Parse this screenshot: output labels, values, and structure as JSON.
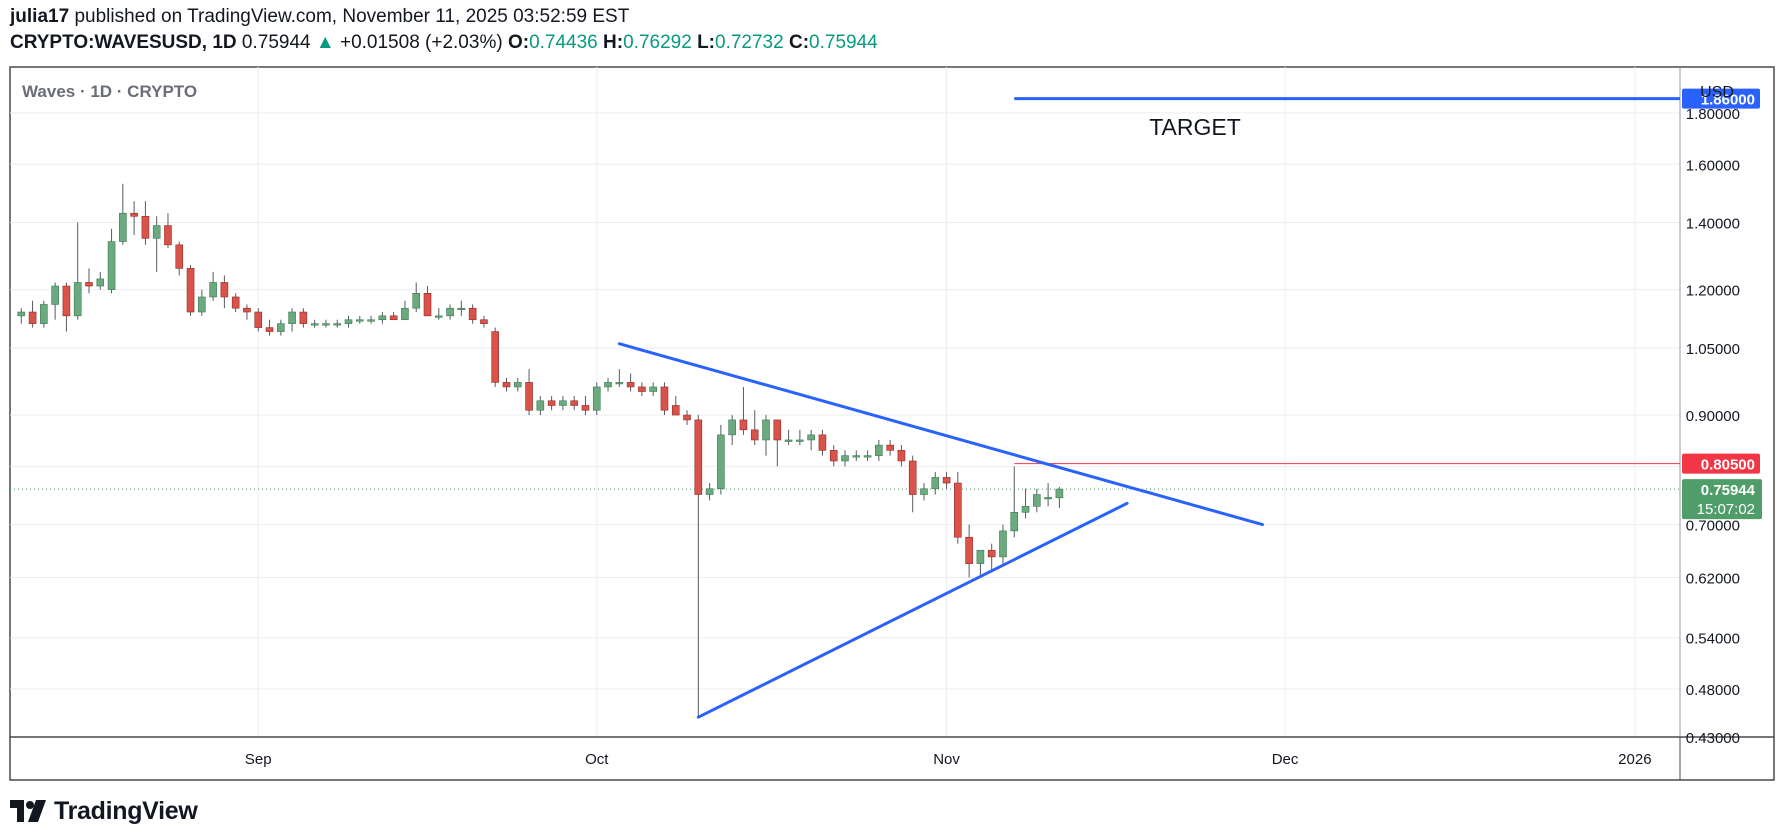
{
  "header": {
    "publisher": "julia17",
    "published_text": "published on TradingView.com, November 11, 2025 03:52:59 EST",
    "symbol": "CRYPTO:WAVESUSD, 1D",
    "last_price": "0.75944",
    "change_arrow": "▲",
    "change": "+0.01508 (+2.03%)",
    "open_label": "O:",
    "open": "0.74436",
    "high_label": "H:",
    "high": "0.76292",
    "low_label": "L:",
    "low": "0.72732",
    "close_label": "C:",
    "close": "0.75944"
  },
  "pane": {
    "legend": "Waves · 1D · CRYPTO",
    "currency": "USD",
    "target_label": "TARGET"
  },
  "footer": {
    "brand": "TradingView",
    "logo_icon": "tradingview-logo-icon"
  },
  "colors": {
    "up": "#6BAA7F",
    "down": "#D9534A",
    "blue": "#2962FF",
    "red_line": "#F23645",
    "green_badge": "#4F9E6A"
  },
  "chart_data": {
    "type": "candlestick",
    "y_scale": "log",
    "ylim": [
      0.43,
      2.0
    ],
    "y_ticks": [
      "1.80000",
      "1.60000",
      "1.40000",
      "1.20000",
      "1.05000",
      "0.90000",
      "0.80000",
      "0.70000",
      "0.62000",
      "0.54000",
      "0.48000",
      "0.43000"
    ],
    "x_ticks": [
      {
        "label": "Sep",
        "date": "2025-09-01"
      },
      {
        "label": "Oct",
        "date": "2025-10-01"
      },
      {
        "label": "Nov",
        "date": "2025-11-01"
      },
      {
        "label": "Dec",
        "date": "2025-12-01"
      },
      {
        "label": "2026",
        "date": "2026-01-01"
      }
    ],
    "xlim": [
      "2025-08-10",
      "2026-01-05"
    ],
    "candles": [
      {
        "date": "2025-08-11",
        "o": 1.13,
        "h": 1.15,
        "l": 1.11,
        "c": 1.14
      },
      {
        "date": "2025-08-12",
        "o": 1.14,
        "h": 1.17,
        "l": 1.1,
        "c": 1.11
      },
      {
        "date": "2025-08-13",
        "o": 1.11,
        "h": 1.17,
        "l": 1.1,
        "c": 1.16
      },
      {
        "date": "2025-08-14",
        "o": 1.16,
        "h": 1.22,
        "l": 1.12,
        "c": 1.21
      },
      {
        "date": "2025-08-15",
        "o": 1.21,
        "h": 1.22,
        "l": 1.09,
        "c": 1.13
      },
      {
        "date": "2025-08-16",
        "o": 1.13,
        "h": 1.4,
        "l": 1.12,
        "c": 1.22
      },
      {
        "date": "2025-08-17",
        "o": 1.22,
        "h": 1.26,
        "l": 1.19,
        "c": 1.21
      },
      {
        "date": "2025-08-18",
        "o": 1.21,
        "h": 1.25,
        "l": 1.2,
        "c": 1.23
      },
      {
        "date": "2025-08-19",
        "o": 1.2,
        "h": 1.38,
        "l": 1.19,
        "c": 1.34
      },
      {
        "date": "2025-08-20",
        "o": 1.34,
        "h": 1.53,
        "l": 1.33,
        "c": 1.43
      },
      {
        "date": "2025-08-21",
        "o": 1.43,
        "h": 1.47,
        "l": 1.36,
        "c": 1.42
      },
      {
        "date": "2025-08-22",
        "o": 1.42,
        "h": 1.47,
        "l": 1.33,
        "c": 1.35
      },
      {
        "date": "2025-08-23",
        "o": 1.35,
        "h": 1.42,
        "l": 1.25,
        "c": 1.39
      },
      {
        "date": "2025-08-24",
        "o": 1.39,
        "h": 1.43,
        "l": 1.32,
        "c": 1.33
      },
      {
        "date": "2025-08-25",
        "o": 1.33,
        "h": 1.34,
        "l": 1.24,
        "c": 1.26
      },
      {
        "date": "2025-08-26",
        "o": 1.26,
        "h": 1.27,
        "l": 1.13,
        "c": 1.14
      },
      {
        "date": "2025-08-27",
        "o": 1.14,
        "h": 1.2,
        "l": 1.13,
        "c": 1.18
      },
      {
        "date": "2025-08-28",
        "o": 1.18,
        "h": 1.25,
        "l": 1.17,
        "c": 1.22
      },
      {
        "date": "2025-08-29",
        "o": 1.22,
        "h": 1.24,
        "l": 1.15,
        "c": 1.18
      },
      {
        "date": "2025-08-30",
        "o": 1.18,
        "h": 1.19,
        "l": 1.14,
        "c": 1.15
      },
      {
        "date": "2025-08-31",
        "o": 1.15,
        "h": 1.16,
        "l": 1.12,
        "c": 1.14
      },
      {
        "date": "2025-09-01",
        "o": 1.14,
        "h": 1.15,
        "l": 1.09,
        "c": 1.1
      },
      {
        "date": "2025-09-02",
        "o": 1.1,
        "h": 1.12,
        "l": 1.08,
        "c": 1.09
      },
      {
        "date": "2025-09-03",
        "o": 1.09,
        "h": 1.12,
        "l": 1.08,
        "c": 1.11
      },
      {
        "date": "2025-09-04",
        "o": 1.11,
        "h": 1.15,
        "l": 1.09,
        "c": 1.14
      },
      {
        "date": "2025-09-05",
        "o": 1.14,
        "h": 1.15,
        "l": 1.1,
        "c": 1.11
      },
      {
        "date": "2025-09-06",
        "o": 1.11,
        "h": 1.12,
        "l": 1.1,
        "c": 1.11
      },
      {
        "date": "2025-09-07",
        "o": 1.11,
        "h": 1.12,
        "l": 1.1,
        "c": 1.11
      },
      {
        "date": "2025-09-08",
        "o": 1.11,
        "h": 1.12,
        "l": 1.1,
        "c": 1.11
      },
      {
        "date": "2025-09-09",
        "o": 1.11,
        "h": 1.13,
        "l": 1.1,
        "c": 1.12
      },
      {
        "date": "2025-09-10",
        "o": 1.12,
        "h": 1.13,
        "l": 1.11,
        "c": 1.12
      },
      {
        "date": "2025-09-11",
        "o": 1.12,
        "h": 1.13,
        "l": 1.11,
        "c": 1.12
      },
      {
        "date": "2025-09-12",
        "o": 1.12,
        "h": 1.14,
        "l": 1.11,
        "c": 1.13
      },
      {
        "date": "2025-09-13",
        "o": 1.13,
        "h": 1.14,
        "l": 1.12,
        "c": 1.12
      },
      {
        "date": "2025-09-14",
        "o": 1.12,
        "h": 1.17,
        "l": 1.12,
        "c": 1.15
      },
      {
        "date": "2025-09-15",
        "o": 1.15,
        "h": 1.22,
        "l": 1.14,
        "c": 1.19
      },
      {
        "date": "2025-09-16",
        "o": 1.19,
        "h": 1.21,
        "l": 1.13,
        "c": 1.13
      },
      {
        "date": "2025-09-17",
        "o": 1.13,
        "h": 1.15,
        "l": 1.12,
        "c": 1.13
      },
      {
        "date": "2025-09-18",
        "o": 1.13,
        "h": 1.16,
        "l": 1.12,
        "c": 1.15
      },
      {
        "date": "2025-09-19",
        "o": 1.15,
        "h": 1.17,
        "l": 1.13,
        "c": 1.15
      },
      {
        "date": "2025-09-20",
        "o": 1.15,
        "h": 1.16,
        "l": 1.11,
        "c": 1.12
      },
      {
        "date": "2025-09-21",
        "o": 1.12,
        "h": 1.13,
        "l": 1.1,
        "c": 1.11
      },
      {
        "date": "2025-09-22",
        "o": 1.09,
        "h": 1.1,
        "l": 0.96,
        "c": 0.97
      },
      {
        "date": "2025-09-23",
        "o": 0.97,
        "h": 0.98,
        "l": 0.95,
        "c": 0.96
      },
      {
        "date": "2025-09-24",
        "o": 0.96,
        "h": 0.98,
        "l": 0.95,
        "c": 0.97
      },
      {
        "date": "2025-09-25",
        "o": 0.97,
        "h": 1.0,
        "l": 0.9,
        "c": 0.91
      },
      {
        "date": "2025-09-26",
        "o": 0.91,
        "h": 0.94,
        "l": 0.9,
        "c": 0.93
      },
      {
        "date": "2025-09-27",
        "o": 0.93,
        "h": 0.94,
        "l": 0.91,
        "c": 0.92
      },
      {
        "date": "2025-09-28",
        "o": 0.92,
        "h": 0.94,
        "l": 0.91,
        "c": 0.93
      },
      {
        "date": "2025-09-29",
        "o": 0.93,
        "h": 0.94,
        "l": 0.91,
        "c": 0.92
      },
      {
        "date": "2025-09-30",
        "o": 0.92,
        "h": 0.94,
        "l": 0.9,
        "c": 0.91
      },
      {
        "date": "2025-10-01",
        "o": 0.91,
        "h": 0.97,
        "l": 0.9,
        "c": 0.96
      },
      {
        "date": "2025-10-02",
        "o": 0.96,
        "h": 0.98,
        "l": 0.95,
        "c": 0.97
      },
      {
        "date": "2025-10-03",
        "o": 0.97,
        "h": 1.0,
        "l": 0.96,
        "c": 0.97
      },
      {
        "date": "2025-10-04",
        "o": 0.97,
        "h": 0.99,
        "l": 0.95,
        "c": 0.96
      },
      {
        "date": "2025-10-05",
        "o": 0.96,
        "h": 0.97,
        "l": 0.94,
        "c": 0.95
      },
      {
        "date": "2025-10-06",
        "o": 0.95,
        "h": 0.97,
        "l": 0.94,
        "c": 0.96
      },
      {
        "date": "2025-10-07",
        "o": 0.96,
        "h": 0.97,
        "l": 0.9,
        "c": 0.91
      },
      {
        "date": "2025-10-08",
        "o": 0.92,
        "h": 0.94,
        "l": 0.9,
        "c": 0.9
      },
      {
        "date": "2025-10-09",
        "o": 0.9,
        "h": 0.91,
        "l": 0.88,
        "c": 0.89
      },
      {
        "date": "2025-10-10",
        "o": 0.89,
        "h": 0.9,
        "l": 0.45,
        "c": 0.75
      },
      {
        "date": "2025-10-11",
        "o": 0.75,
        "h": 0.77,
        "l": 0.74,
        "c": 0.76
      },
      {
        "date": "2025-10-12",
        "o": 0.76,
        "h": 0.88,
        "l": 0.75,
        "c": 0.86
      },
      {
        "date": "2025-10-13",
        "o": 0.86,
        "h": 0.9,
        "l": 0.84,
        "c": 0.89
      },
      {
        "date": "2025-10-14",
        "o": 0.89,
        "h": 0.96,
        "l": 0.86,
        "c": 0.87
      },
      {
        "date": "2025-10-15",
        "o": 0.87,
        "h": 0.91,
        "l": 0.84,
        "c": 0.85
      },
      {
        "date": "2025-10-16",
        "o": 0.85,
        "h": 0.9,
        "l": 0.82,
        "c": 0.89
      },
      {
        "date": "2025-10-17",
        "o": 0.89,
        "h": 0.89,
        "l": 0.8,
        "c": 0.85
      },
      {
        "date": "2025-10-18",
        "o": 0.85,
        "h": 0.87,
        "l": 0.84,
        "c": 0.85
      },
      {
        "date": "2025-10-19",
        "o": 0.85,
        "h": 0.87,
        "l": 0.84,
        "c": 0.85
      },
      {
        "date": "2025-10-20",
        "o": 0.85,
        "h": 0.87,
        "l": 0.83,
        "c": 0.86
      },
      {
        "date": "2025-10-21",
        "o": 0.86,
        "h": 0.87,
        "l": 0.82,
        "c": 0.83
      },
      {
        "date": "2025-10-22",
        "o": 0.83,
        "h": 0.84,
        "l": 0.8,
        "c": 0.81
      },
      {
        "date": "2025-10-23",
        "o": 0.81,
        "h": 0.83,
        "l": 0.8,
        "c": 0.82
      },
      {
        "date": "2025-10-24",
        "o": 0.82,
        "h": 0.83,
        "l": 0.81,
        "c": 0.82
      },
      {
        "date": "2025-10-25",
        "o": 0.82,
        "h": 0.83,
        "l": 0.81,
        "c": 0.82
      },
      {
        "date": "2025-10-26",
        "o": 0.82,
        "h": 0.85,
        "l": 0.81,
        "c": 0.84
      },
      {
        "date": "2025-10-27",
        "o": 0.84,
        "h": 0.85,
        "l": 0.82,
        "c": 0.83
      },
      {
        "date": "2025-10-28",
        "o": 0.83,
        "h": 0.84,
        "l": 0.8,
        "c": 0.81
      },
      {
        "date": "2025-10-29",
        "o": 0.81,
        "h": 0.82,
        "l": 0.72,
        "c": 0.75
      },
      {
        "date": "2025-10-30",
        "o": 0.75,
        "h": 0.77,
        "l": 0.74,
        "c": 0.76
      },
      {
        "date": "2025-10-31",
        "o": 0.76,
        "h": 0.79,
        "l": 0.75,
        "c": 0.78
      },
      {
        "date": "2025-11-01",
        "o": 0.78,
        "h": 0.79,
        "l": 0.76,
        "c": 0.77
      },
      {
        "date": "2025-11-02",
        "o": 0.77,
        "h": 0.79,
        "l": 0.67,
        "c": 0.68
      },
      {
        "date": "2025-11-03",
        "o": 0.68,
        "h": 0.7,
        "l": 0.62,
        "c": 0.64
      },
      {
        "date": "2025-11-04",
        "o": 0.64,
        "h": 0.66,
        "l": 0.62,
        "c": 0.66
      },
      {
        "date": "2025-11-05",
        "o": 0.66,
        "h": 0.67,
        "l": 0.63,
        "c": 0.65
      },
      {
        "date": "2025-11-06",
        "o": 0.65,
        "h": 0.7,
        "l": 0.64,
        "c": 0.69
      },
      {
        "date": "2025-11-07",
        "o": 0.69,
        "h": 0.8,
        "l": 0.68,
        "c": 0.72
      },
      {
        "date": "2025-11-08",
        "o": 0.72,
        "h": 0.76,
        "l": 0.71,
        "c": 0.73
      },
      {
        "date": "2025-11-09",
        "o": 0.73,
        "h": 0.76,
        "l": 0.72,
        "c": 0.75
      },
      {
        "date": "2025-11-10",
        "o": 0.745,
        "h": 0.77,
        "l": 0.73,
        "c": 0.745
      },
      {
        "date": "2025-11-11",
        "o": 0.74436,
        "h": 0.76292,
        "l": 0.72732,
        "c": 0.75944
      }
    ],
    "drawings": {
      "upper_trendline": {
        "from": {
          "date": "2025-10-03",
          "price": 1.06
        },
        "to": {
          "date": "2025-11-29",
          "price": 0.7
        }
      },
      "lower_trendline": {
        "from": {
          "date": "2025-10-10",
          "price": 0.45
        },
        "to": {
          "date": "2025-11-17",
          "price": 0.735
        }
      },
      "target_line": {
        "from_date": "2025-11-07",
        "price": 1.86,
        "label": "1.86000"
      },
      "resistance_line": {
        "from_date": "2025-11-07",
        "price": 0.805,
        "label": "0.80500"
      },
      "last_price": {
        "price": 0.75944,
        "label": "0.75944",
        "countdown": "15:07:02"
      }
    }
  }
}
